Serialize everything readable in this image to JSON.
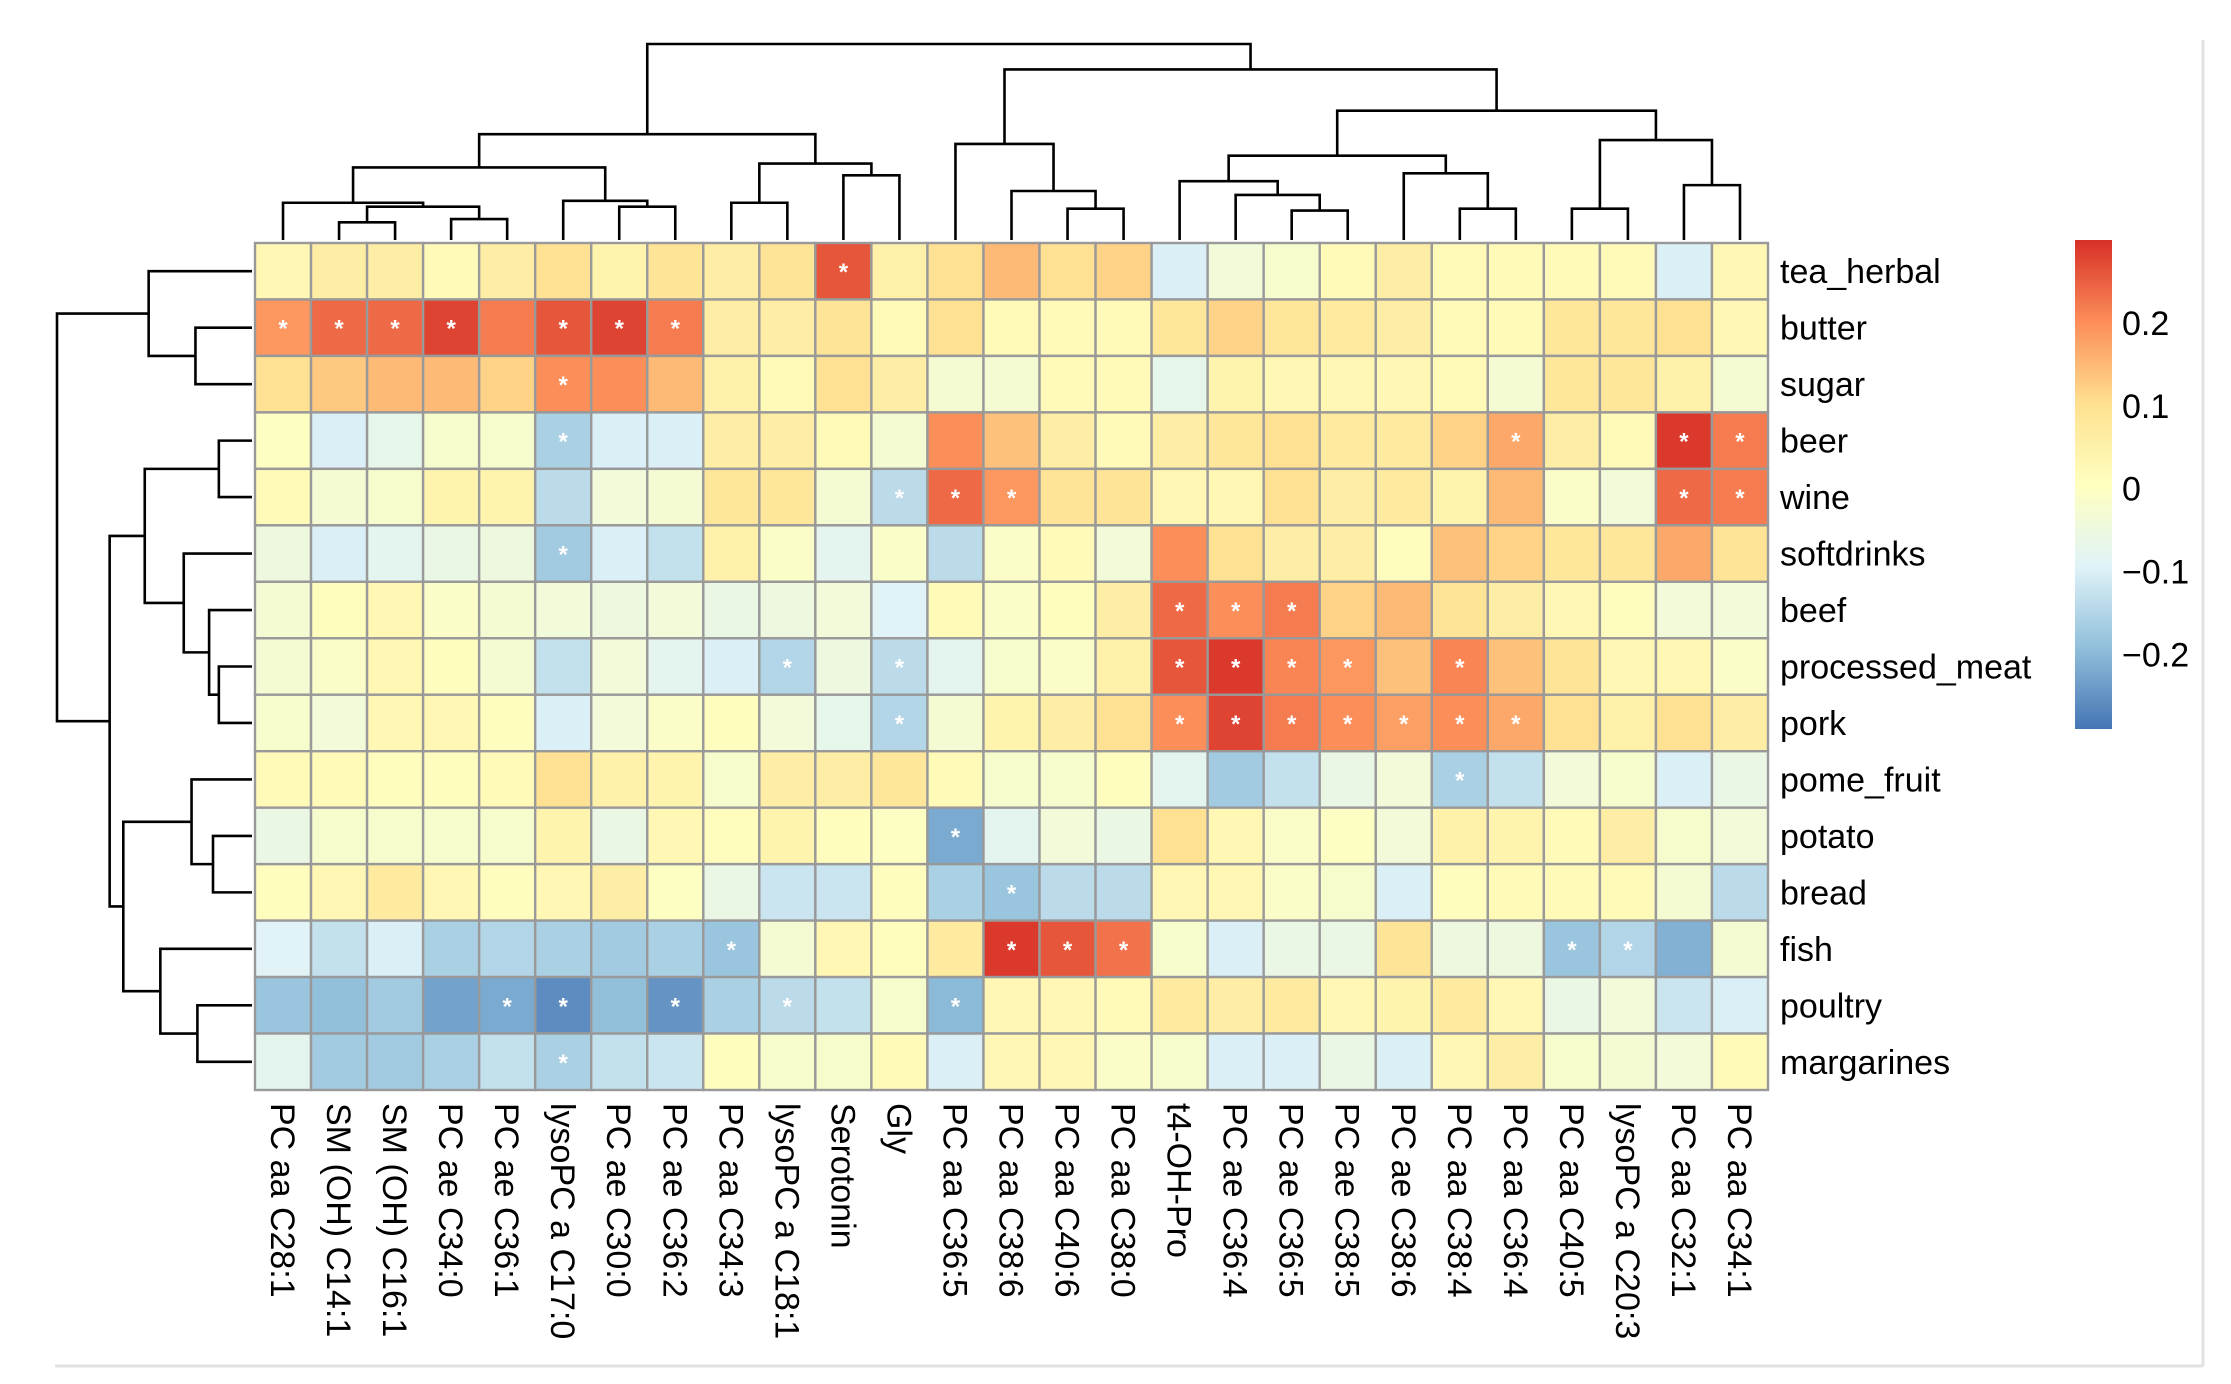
{
  "chart_data": {
    "type": "heatmap",
    "title": "",
    "columns": [
      "PC aa C28:1",
      "SM (OH) C14:1",
      "SM (OH) C16:1",
      "PC ae C34:0",
      "PC ae C36:1",
      "lysoPC a C17:0",
      "PC ae C30:0",
      "PC ae C36:2",
      "PC aa C34:3",
      "lysoPC a C18:1",
      "Serotonin",
      "Gly",
      "PC aa C36:5",
      "PC aa C38:6",
      "PC aa C40:6",
      "PC aa C38:0",
      "t4-OH-Pro",
      "PC ae C36:4",
      "PC ae C36:5",
      "PC ae C38:5",
      "PC ae C38:6",
      "PC aa C38:4",
      "PC aa C36:4",
      "PC aa C40:5",
      "lysoPC a C20:3",
      "PC aa C32:1",
      "PC aa C34:1"
    ],
    "rows": [
      "tea_herbal",
      "butter",
      "sugar",
      "beer",
      "wine",
      "softdrinks",
      "beef",
      "processed_meat",
      "pork",
      "pome_fruit",
      "potato",
      "bread",
      "fish",
      "poultry",
      "margarines"
    ],
    "values": [
      [
        0.03,
        0.06,
        0.06,
        0.02,
        0.06,
        0.1,
        0.04,
        0.09,
        0.06,
        0.09,
        0.26,
        0.05,
        0.1,
        0.15,
        0.1,
        0.12,
        -0.1,
        -0.04,
        -0.02,
        0.02,
        0.06,
        0.02,
        0.02,
        0.02,
        0.02,
        -0.1,
        0.03
      ],
      [
        0.19,
        0.24,
        0.24,
        0.28,
        0.22,
        0.26,
        0.28,
        0.22,
        0.06,
        0.06,
        0.09,
        0.02,
        0.1,
        0.02,
        0.02,
        0.02,
        0.08,
        0.12,
        0.08,
        0.07,
        0.06,
        0.02,
        0.02,
        0.08,
        0.08,
        0.1,
        0.03
      ],
      [
        0.1,
        0.13,
        0.15,
        0.15,
        0.12,
        0.2,
        0.2,
        0.15,
        0.05,
        0.02,
        0.1,
        0.06,
        -0.03,
        -0.03,
        0.02,
        0.02,
        -0.07,
        0.04,
        0.03,
        0.03,
        0.03,
        0.02,
        -0.03,
        0.08,
        0.08,
        0.05,
        -0.03
      ],
      [
        0.0,
        -0.1,
        -0.07,
        -0.02,
        -0.02,
        -0.16,
        -0.1,
        -0.1,
        0.06,
        0.06,
        0.02,
        -0.03,
        0.2,
        0.14,
        0.06,
        0.02,
        0.06,
        0.08,
        0.1,
        0.07,
        0.07,
        0.12,
        0.17,
        0.06,
        0.02,
        0.29,
        0.22
      ],
      [
        0.02,
        -0.03,
        -0.02,
        0.04,
        0.04,
        -0.14,
        -0.04,
        -0.03,
        0.08,
        0.08,
        -0.03,
        -0.14,
        0.24,
        0.19,
        0.09,
        0.09,
        0.03,
        0.03,
        0.1,
        0.06,
        0.07,
        0.04,
        0.15,
        -0.01,
        -0.04,
        0.24,
        0.22
      ],
      [
        -0.05,
        -0.1,
        -0.08,
        -0.06,
        -0.05,
        -0.17,
        -0.1,
        -0.13,
        0.05,
        -0.01,
        -0.08,
        -0.01,
        -0.14,
        -0.01,
        0.02,
        -0.04,
        0.2,
        0.1,
        0.06,
        0.06,
        0.01,
        0.14,
        0.12,
        0.08,
        0.08,
        0.17,
        0.09
      ],
      [
        -0.03,
        0.01,
        0.03,
        -0.01,
        -0.03,
        -0.04,
        -0.05,
        -0.04,
        -0.06,
        -0.05,
        -0.04,
        -0.09,
        0.02,
        -0.01,
        0.01,
        0.06,
        0.24,
        0.2,
        0.22,
        0.12,
        0.15,
        0.09,
        0.06,
        0.03,
        0.01,
        -0.04,
        -0.04
      ],
      [
        -0.03,
        -0.01,
        0.03,
        0.01,
        -0.03,
        -0.13,
        -0.04,
        -0.08,
        -0.1,
        -0.15,
        -0.05,
        -0.14,
        -0.08,
        -0.02,
        -0.01,
        0.05,
        0.26,
        0.29,
        0.21,
        0.19,
        0.14,
        0.21,
        0.14,
        0.09,
        0.03,
        0.03,
        -0.01
      ],
      [
        -0.02,
        -0.04,
        0.03,
        0.03,
        0.01,
        -0.1,
        -0.04,
        -0.01,
        0.01,
        -0.04,
        -0.07,
        -0.15,
        -0.03,
        0.04,
        0.06,
        0.1,
        0.2,
        0.28,
        0.22,
        0.2,
        0.18,
        0.2,
        0.17,
        0.1,
        0.05,
        0.1,
        0.06
      ],
      [
        0.02,
        0.02,
        0.01,
        0.01,
        0.02,
        0.1,
        0.05,
        0.04,
        -0.02,
        0.06,
        0.06,
        0.08,
        0.02,
        -0.02,
        -0.02,
        0.01,
        -0.08,
        -0.17,
        -0.13,
        -0.06,
        -0.04,
        -0.16,
        -0.13,
        -0.04,
        -0.02,
        -0.1,
        -0.06
      ],
      [
        -0.06,
        -0.02,
        -0.02,
        -0.02,
        -0.02,
        0.04,
        -0.06,
        0.03,
        0.01,
        0.04,
        0.01,
        0.0,
        -0.22,
        -0.08,
        -0.04,
        -0.06,
        0.1,
        0.03,
        -0.01,
        0.0,
        -0.04,
        0.05,
        0.04,
        0.02,
        0.06,
        -0.02,
        -0.04
      ],
      [
        0.01,
        0.03,
        0.07,
        0.03,
        0.01,
        0.03,
        0.06,
        0.0,
        -0.06,
        -0.12,
        -0.12,
        0.01,
        -0.16,
        -0.18,
        -0.14,
        -0.14,
        0.03,
        0.03,
        -0.01,
        -0.02,
        -0.1,
        0.01,
        0.02,
        0.02,
        0.02,
        -0.03,
        -0.14
      ],
      [
        -0.09,
        -0.13,
        -0.1,
        -0.16,
        -0.15,
        -0.16,
        -0.17,
        -0.16,
        -0.18,
        -0.03,
        0.03,
        0.01,
        0.07,
        0.29,
        0.26,
        0.23,
        -0.02,
        -0.1,
        -0.06,
        -0.06,
        0.09,
        -0.05,
        -0.05,
        -0.18,
        -0.15,
        -0.21,
        -0.03
      ],
      [
        -0.18,
        -0.19,
        -0.17,
        -0.23,
        -0.22,
        -0.26,
        -0.19,
        -0.25,
        -0.16,
        -0.14,
        -0.13,
        -0.02,
        -0.2,
        0.03,
        0.03,
        0.02,
        0.07,
        0.06,
        0.07,
        0.03,
        0.04,
        0.07,
        0.03,
        -0.06,
        -0.04,
        -0.12,
        -0.1
      ],
      [
        -0.08,
        -0.17,
        -0.17,
        -0.16,
        -0.13,
        -0.16,
        -0.13,
        -0.12,
        0.01,
        -0.02,
        -0.02,
        0.02,
        -0.1,
        0.03,
        0.03,
        -0.01,
        -0.02,
        -0.1,
        -0.1,
        -0.06,
        -0.1,
        0.03,
        0.06,
        -0.02,
        -0.03,
        -0.04,
        0.02
      ]
    ],
    "significance_marker": "*",
    "significant_cells": [
      [
        0,
        10
      ],
      [
        1,
        0
      ],
      [
        1,
        1
      ],
      [
        1,
        2
      ],
      [
        1,
        3
      ],
      [
        1,
        5
      ],
      [
        1,
        6
      ],
      [
        1,
        7
      ],
      [
        2,
        5
      ],
      [
        3,
        5
      ],
      [
        3,
        22
      ],
      [
        3,
        25
      ],
      [
        3,
        26
      ],
      [
        4,
        11
      ],
      [
        4,
        12
      ],
      [
        4,
        13
      ],
      [
        4,
        25
      ],
      [
        4,
        26
      ],
      [
        5,
        5
      ],
      [
        6,
        16
      ],
      [
        6,
        17
      ],
      [
        6,
        18
      ],
      [
        7,
        9
      ],
      [
        7,
        11
      ],
      [
        7,
        16
      ],
      [
        7,
        17
      ],
      [
        7,
        18
      ],
      [
        7,
        19
      ],
      [
        7,
        21
      ],
      [
        8,
        11
      ],
      [
        8,
        16
      ],
      [
        8,
        17
      ],
      [
        8,
        18
      ],
      [
        8,
        19
      ],
      [
        8,
        20
      ],
      [
        8,
        21
      ],
      [
        8,
        22
      ],
      [
        9,
        21
      ],
      [
        10,
        12
      ],
      [
        11,
        13
      ],
      [
        12,
        8
      ],
      [
        12,
        13
      ],
      [
        12,
        14
      ],
      [
        12,
        15
      ],
      [
        12,
        23
      ],
      [
        12,
        24
      ],
      [
        13,
        4
      ],
      [
        13,
        5
      ],
      [
        13,
        7
      ],
      [
        13,
        9
      ],
      [
        13,
        12
      ],
      [
        14,
        5
      ]
    ],
    "column_dendrogram": [
      1.0,
      [
        0.54,
        [
          0.37,
          [
            0.19,
            0,
            [
              0.17,
              [
                0.09,
                1,
                2
              ],
              [
                0.107,
                3,
                4
              ]
            ]
          ],
          [
            0.2,
            5,
            [
              0.17,
              6,
              7
            ]
          ]
        ],
        [
          0.39,
          [
            0.19,
            8,
            9
          ],
          [
            0.33,
            10,
            11
          ]
        ]
      ],
      [
        0.87,
        [
          0.49,
          12,
          [
            0.25,
            13,
            [
              0.16,
              14,
              15
            ]
          ]
        ],
        [
          0.66,
          [
            0.43,
            [
              0.3,
              16,
              [
                0.23,
                17,
                [
                  0.15,
                  18,
                  19
                ]
              ]
            ],
            [
              0.34,
              20,
              [
                0.16,
                21,
                22
              ]
            ]
          ],
          [
            0.51,
            [
              0.16,
              23,
              24
            ],
            [
              0.28,
              25,
              26
            ]
          ]
        ]
      ]
    ],
    "row_dendrogram": [
      1.0,
      [
        0.53,
        0,
        [
          0.29,
          1,
          2
        ]
      ],
      [
        0.73,
        [
          0.55,
          [
            0.17,
            3,
            4
          ],
          [
            0.35,
            5,
            [
              0.22,
              6,
              [
                0.17,
                7,
                8
              ]
            ]
          ]
        ],
        [
          0.66,
          [
            0.31,
            9,
            [
              0.2,
              10,
              11
            ]
          ],
          [
            0.47,
            12,
            [
              0.28,
              13,
              14
            ]
          ]
        ]
      ]
    ],
    "color_scale": {
      "range": [
        -0.29,
        0.3
      ],
      "colors": [
        "#4575B4",
        "#91BFDB",
        "#E0F3F8",
        "#FFFFBF",
        "#FEE090",
        "#FC8D59",
        "#D73027"
      ],
      "ticks": [
        0.2,
        0.1,
        0,
        -0.1,
        -0.2
      ],
      "tick_labels": [
        "0.2",
        "0.1",
        "0",
        "−0.1",
        "−0.2"
      ]
    },
    "cell_border_color": "#999999",
    "legend_position": "right"
  }
}
